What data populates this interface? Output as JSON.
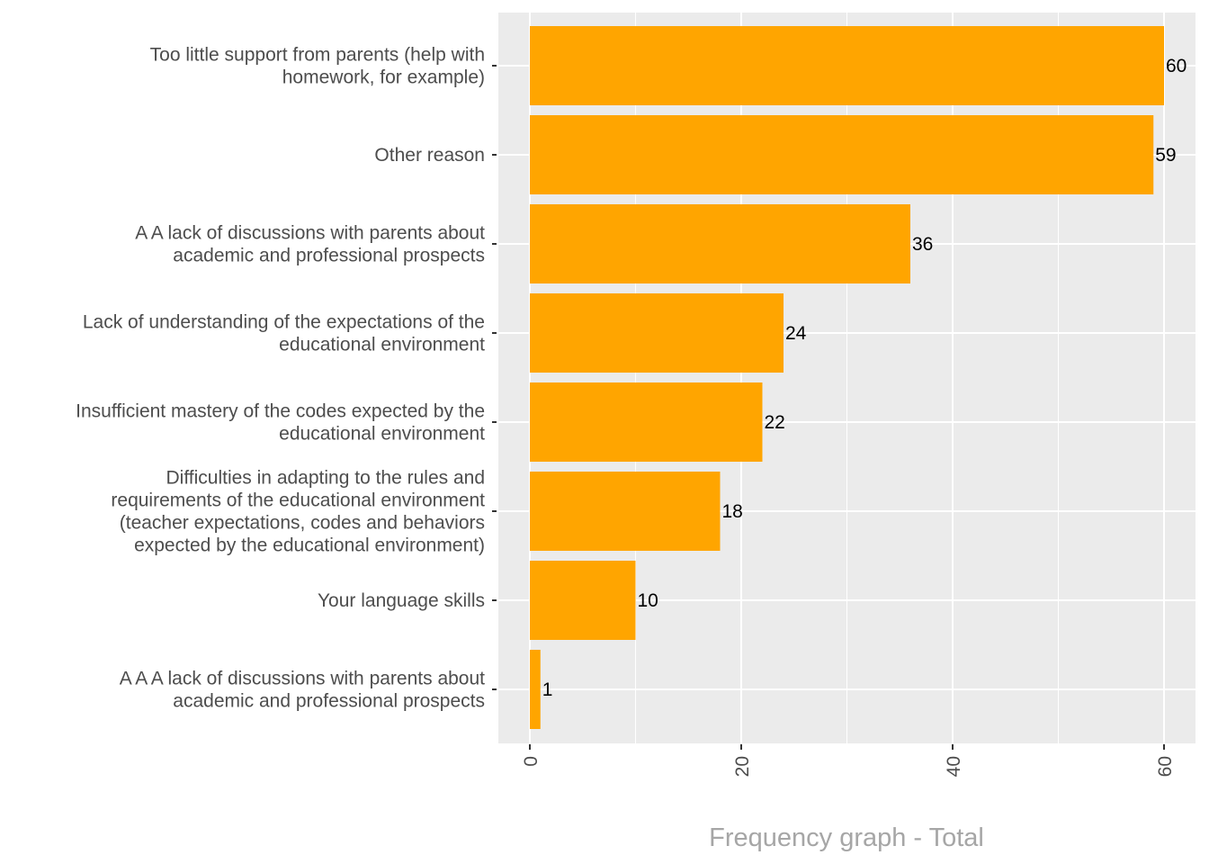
{
  "chart_data": {
    "type": "bar",
    "orientation": "horizontal",
    "title": "",
    "xlabel": "Frequency graph - Total",
    "ylabel": "",
    "xlim": [
      -3,
      62
    ],
    "xticks": [
      0,
      20,
      40,
      60
    ],
    "xtick_labels": [
      "0",
      "20",
      "40",
      "60"
    ],
    "grid": true,
    "categories": [
      [
        "Too little support from parents (help with",
        "homework, for example)"
      ],
      [
        "Other reason"
      ],
      [
        "A A lack of discussions with parents about",
        "academic and professional prospects"
      ],
      [
        "Lack of understanding of the expectations of the",
        "educational environment"
      ],
      [
        "Insufficient mastery of the codes expected by the",
        "educational environment"
      ],
      [
        "Difficulties in adapting to the rules and",
        "requirements of the educational environment",
        "(teacher expectations, codes and behaviors",
        "expected by the educational environment)"
      ],
      [
        "Your language skills"
      ],
      [
        "A A A lack of discussions with parents about",
        "academic and professional prospects"
      ]
    ],
    "values": [
      60,
      59,
      36,
      24,
      22,
      18,
      10,
      1
    ],
    "data_labels": [
      "60",
      "59",
      "36",
      "24",
      "22",
      "18",
      "10",
      "1"
    ],
    "bar_color": "#FFA500",
    "panel_color": "#EBEBEB",
    "grid_color": "#FFFFFF"
  }
}
